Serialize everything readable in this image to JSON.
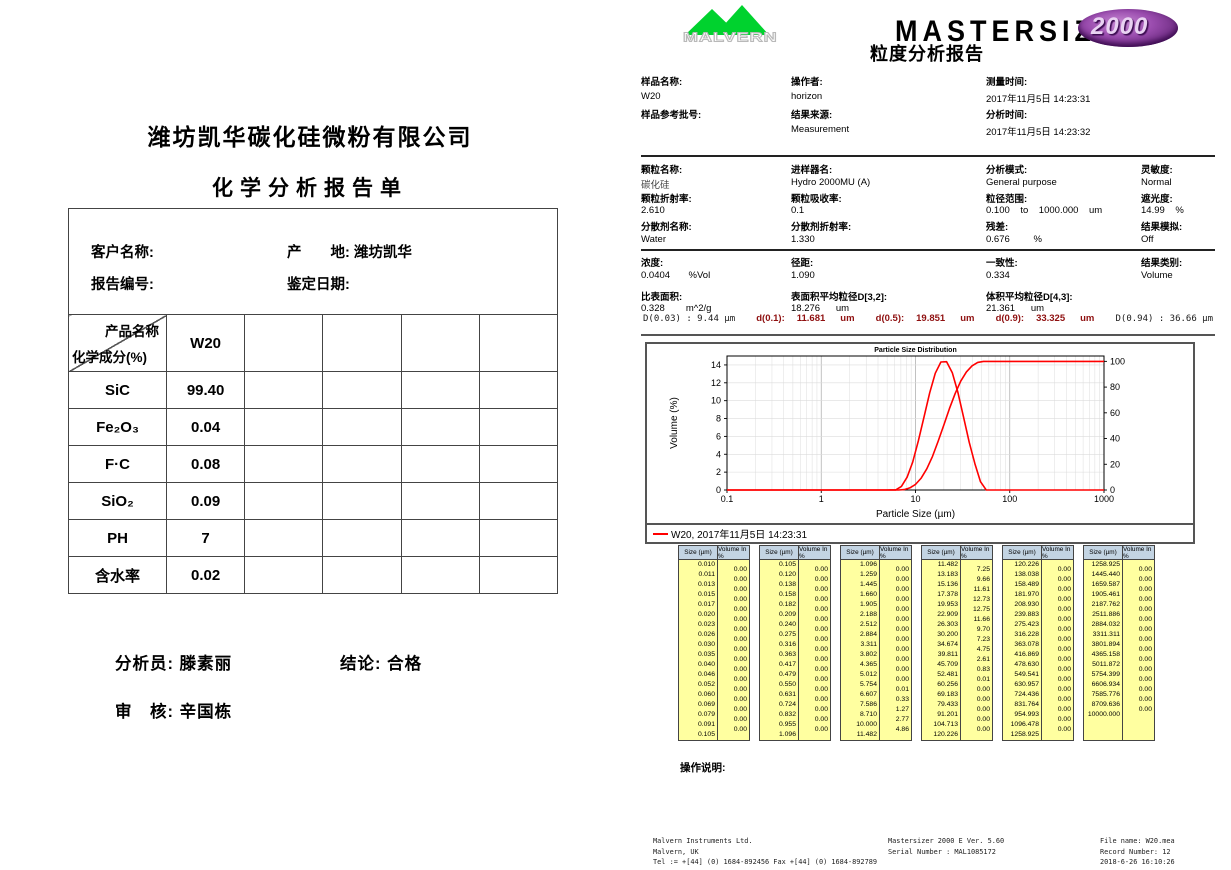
{
  "colors": {
    "curve_red": "#ff0000",
    "d_value_red": "#8f1010",
    "size_table_header_bg": "#c3d4e3",
    "size_table_body_bg": "#ffffa0",
    "malvern_green": "#00d22e",
    "model_purple": "#8a3d9e"
  },
  "left_report": {
    "company": "潍坊凯华碳化硅微粉有限公司",
    "title": "化学分析报告单",
    "info": {
      "customer_label": "客户名称:",
      "origin_label": "产　　地: ",
      "origin_value": "潍坊凯华",
      "report_no_label": "报告编号:",
      "date_label": "鉴定日期:"
    },
    "chem_table": {
      "corner_top": "产品名称",
      "corner_bottom": "化学成分(%)",
      "columns": [
        "W20",
        "",
        "",
        "",
        ""
      ],
      "rows": [
        {
          "name": "SiC",
          "value": "99.40"
        },
        {
          "name": "Fe₂O₃",
          "value": "0.04"
        },
        {
          "name": "F·C",
          "value": "0.08"
        },
        {
          "name": "SiO₂",
          "value": "0.09"
        },
        {
          "name": "PH",
          "value": "7"
        },
        {
          "name": "含水率",
          "value": "0.02"
        }
      ]
    },
    "analyst_label": "分析员: ",
    "analyst": "滕素丽",
    "conclusion_label": "结论: ",
    "conclusion": "合格",
    "reviewer_label": "审　核: ",
    "reviewer": "辛国栋"
  },
  "right_report": {
    "logo_malvern": "MALVERN",
    "logo_product": "MASTERSIZER",
    "logo_model": "2000",
    "report_title": "粒度分析报告",
    "sample_cols": [
      {
        "l1": "样品名称:",
        "v1": "W20",
        "l2": "样品参考批号:",
        "v2": ""
      },
      {
        "l1": "操作者:",
        "v1": "horizon",
        "l2": "结果来源:",
        "v2": "Measurement"
      },
      {
        "l1": "测量时间:",
        "v1": "2017年11月5日 14:23:31",
        "l2": "分析时间:",
        "v2": "2017年11月5日 14:23:32"
      }
    ],
    "param_rows": [
      [
        {
          "l": "颗粒名称:",
          "v": "碳化硅"
        },
        {
          "l": "进样器名:",
          "v": "Hydro 2000MU (A)"
        },
        {
          "l": "分析模式:",
          "v": "General purpose"
        },
        {
          "l": "灵敏度:",
          "v": "Normal"
        }
      ],
      [
        {
          "l": "颗粒折射率:",
          "v": "2.610"
        },
        {
          "l": "颗粒吸收率:",
          "v": "0.1"
        },
        {
          "l": "粒径范围:",
          "v": "0.100    to    1000.000    um"
        },
        {
          "l": "遮光度:",
          "v": "14.99    %"
        }
      ],
      [
        {
          "l": "分散剂名称:",
          "v": "Water"
        },
        {
          "l": "分散剂折射率:",
          "v": "1.330"
        },
        {
          "l": "残差:",
          "v": "0.676         %"
        },
        {
          "l": "结果模拟:",
          "v": "Off"
        }
      ]
    ],
    "result_rows": [
      [
        {
          "l": "浓度:",
          "v": "0.0404       %Vol"
        },
        {
          "l": "径距:",
          "v": "1.090"
        },
        {
          "l": "一致性:",
          "v": "0.334"
        },
        {
          "l": "结果类别:",
          "v": "Volume"
        }
      ],
      [
        {
          "l": "比表面积:",
          "v": "0.328        m^2/g"
        },
        {
          "l": "表面积平均粒径D[3,2]:",
          "v": "18.276      um"
        },
        {
          "l": "体积平均粒径D[4,3]:",
          "v": "21.361      um"
        }
      ]
    ],
    "d_values": {
      "d003": "D(0.03) : 9.44 μm",
      "d01_label": "d(0.1):",
      "d01": "11.681",
      "d01_unit": "um",
      "d05_label": "d(0.5):",
      "d05": "19.851",
      "d05_unit": "um",
      "d09_label": "d(0.9):",
      "d09": "33.325",
      "d09_unit": "um",
      "d094": "D(0.94) : 36.66 μm"
    },
    "ops_label": "操作说明:",
    "footer": {
      "left_lines": [
        "Malvern Instruments Ltd.",
        "Malvern, UK",
        "Tel := +[44] (0) 1684-892456 Fax +[44] (0) 1684-892789"
      ],
      "center_lines": [
        "Mastersizer 2000 E Ver. 5.60",
        "Serial Number : MAL1085172"
      ],
      "right_lines": [
        "File name: W20.mea",
        "Record Number: 12",
        "2018-6-26 16:10:26"
      ]
    }
  },
  "chart_data": {
    "type": "line",
    "title": "Particle Size Distribution",
    "xlabel": "Particle Size (µm)",
    "ylabel": "Volume (%)",
    "x_scale": "log",
    "xlim": [
      0.1,
      1000
    ],
    "xticks": [
      0.1,
      1,
      10,
      100,
      1000
    ],
    "ylim_left": [
      0,
      15
    ],
    "yticks_left": [
      0,
      2,
      4,
      6,
      8,
      10,
      12,
      14
    ],
    "ylim_right": [
      0,
      104.17
    ],
    "yticks_right": [
      0,
      20,
      40,
      60,
      80,
      100
    ],
    "grid": true,
    "legend": "W20, 2017年11月5日 14:23:31",
    "legend_position": "bottom",
    "series": [
      {
        "name": "volume-frequency",
        "axis": "left",
        "color": "#ff0000",
        "x": [
          0.1,
          5.0,
          6.17,
          7.09,
          8.14,
          9.33,
          10.72,
          12.31,
          14.13,
          16.22,
          18.62,
          21.38,
          24.55,
          28.18,
          32.36,
          37.15,
          42.66,
          48.98,
          56.23,
          65,
          1000
        ],
        "y": [
          0,
          0,
          0.01,
          0.4,
          1.43,
          3.12,
          5.47,
          8.16,
          10.88,
          13.07,
          14.33,
          14.36,
          13.13,
          10.92,
          8.14,
          5.35,
          2.94,
          0.93,
          0.01,
          0,
          0
        ]
      },
      {
        "name": "cumulative-undersize",
        "axis": "right",
        "color": "#ff0000",
        "x": [
          0.1,
          5.754,
          6.607,
          7.586,
          8.71,
          10.0,
          11.482,
          13.183,
          15.136,
          17.378,
          19.953,
          22.909,
          26.303,
          30.2,
          34.674,
          39.811,
          45.709,
          52.481,
          60.256,
          1000
        ],
        "y": [
          0,
          0,
          0.01,
          0.34,
          1.61,
          4.38,
          9.24,
          16.49,
          26.15,
          37.76,
          50.49,
          63.24,
          74.9,
          84.6,
          91.83,
          96.58,
          99.19,
          100,
          100,
          100
        ]
      }
    ]
  },
  "size_tables": {
    "headers": [
      "Size (µm)",
      "Volume In %"
    ],
    "tables": [
      {
        "sizes": [
          "0.010",
          "0.011",
          "0.013",
          "0.015",
          "0.017",
          "0.020",
          "0.023",
          "0.026",
          "0.030",
          "0.035",
          "0.040",
          "0.046",
          "0.052",
          "0.060",
          "0.069",
          "0.079",
          "0.091",
          "0.105"
        ],
        "volumes": [
          "0.00",
          "0.00",
          "0.00",
          "0.00",
          "0.00",
          "0.00",
          "0.00",
          "0.00",
          "0.00",
          "0.00",
          "0.00",
          "0.00",
          "0.00",
          "0.00",
          "0.00",
          "0.00",
          "0.00"
        ]
      },
      {
        "sizes": [
          "0.105",
          "0.120",
          "0.138",
          "0.158",
          "0.182",
          "0.209",
          "0.240",
          "0.275",
          "0.316",
          "0.363",
          "0.417",
          "0.479",
          "0.550",
          "0.631",
          "0.724",
          "0.832",
          "0.955",
          "1.096"
        ],
        "volumes": [
          "0.00",
          "0.00",
          "0.00",
          "0.00",
          "0.00",
          "0.00",
          "0.00",
          "0.00",
          "0.00",
          "0.00",
          "0.00",
          "0.00",
          "0.00",
          "0.00",
          "0.00",
          "0.00",
          "0.00"
        ]
      },
      {
        "sizes": [
          "1.096",
          "1.259",
          "1.445",
          "1.660",
          "1.905",
          "2.188",
          "2.512",
          "2.884",
          "3.311",
          "3.802",
          "4.365",
          "5.012",
          "5.754",
          "6.607",
          "7.586",
          "8.710",
          "10.000",
          "11.482"
        ],
        "volumes": [
          "0.00",
          "0.00",
          "0.00",
          "0.00",
          "0.00",
          "0.00",
          "0.00",
          "0.00",
          "0.00",
          "0.00",
          "0.00",
          "0.00",
          "0.01",
          "0.33",
          "1.27",
          "2.77",
          "4.86"
        ]
      },
      {
        "sizes": [
          "11.482",
          "13.183",
          "15.136",
          "17.378",
          "19.953",
          "22.909",
          "26.303",
          "30.200",
          "34.674",
          "39.811",
          "45.709",
          "52.481",
          "60.256",
          "69.183",
          "79.433",
          "91.201",
          "104.713",
          "120.226"
        ],
        "volumes": [
          "7.25",
          "9.66",
          "11.61",
          "12.73",
          "12.75",
          "11.66",
          "9.70",
          "7.23",
          "4.75",
          "2.61",
          "0.83",
          "0.01",
          "0.00",
          "0.00",
          "0.00",
          "0.00",
          "0.00"
        ]
      },
      {
        "sizes": [
          "120.226",
          "138.038",
          "158.489",
          "181.970",
          "208.930",
          "239.883",
          "275.423",
          "316.228",
          "363.078",
          "416.869",
          "478.630",
          "549.541",
          "630.957",
          "724.436",
          "831.764",
          "954.993",
          "1096.478",
          "1258.925"
        ],
        "volumes": [
          "0.00",
          "0.00",
          "0.00",
          "0.00",
          "0.00",
          "0.00",
          "0.00",
          "0.00",
          "0.00",
          "0.00",
          "0.00",
          "0.00",
          "0.00",
          "0.00",
          "0.00",
          "0.00",
          "0.00"
        ]
      },
      {
        "sizes": [
          "1258.925",
          "1445.440",
          "1659.587",
          "1905.461",
          "2187.762",
          "2511.886",
          "2884.032",
          "3311.311",
          "3801.894",
          "4365.158",
          "5011.872",
          "5754.399",
          "6606.934",
          "7585.776",
          "8709.636",
          "10000.000"
        ],
        "volumes": [
          "0.00",
          "0.00",
          "0.00",
          "0.00",
          "0.00",
          "0.00",
          "0.00",
          "0.00",
          "0.00",
          "0.00",
          "0.00",
          "0.00",
          "0.00",
          "0.00",
          "0.00"
        ]
      }
    ]
  }
}
